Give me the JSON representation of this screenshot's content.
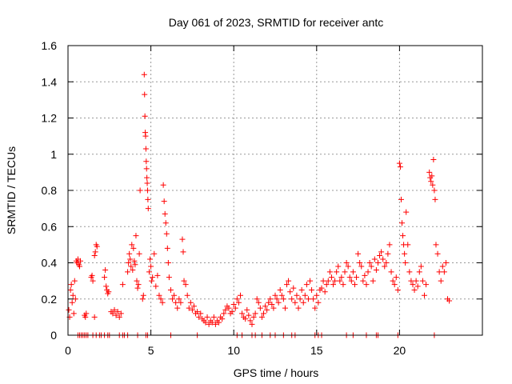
{
  "chart_data": {
    "type": "scatter",
    "title": "Day 061 of 2023, SRMTID for receiver antc",
    "xlabel": "GPS time / hours",
    "ylabel": "SRMTID / TECUs",
    "xlim": [
      0,
      25
    ],
    "ylim": [
      0,
      1.6
    ],
    "x_ticks": [
      0,
      5,
      10,
      15,
      20
    ],
    "x_tick_labels": [
      "0",
      "5",
      "10",
      "15",
      "20"
    ],
    "y_ticks": [
      0,
      0.2,
      0.4,
      0.6,
      0.8,
      1,
      1.2,
      1.4,
      1.6
    ],
    "y_tick_labels": [
      "0",
      "0.2",
      "0.4",
      "0.6",
      "0.8",
      "1",
      "1.2",
      "1.4",
      "1.6"
    ],
    "grid": true,
    "marker": "+",
    "colors": {
      "series": "#ff0000",
      "grid": "#999999",
      "axes": "#000000"
    },
    "series": [
      {
        "name": "SRMTID",
        "points": [
          [
            0.05,
            0.14
          ],
          [
            0.1,
            0.1
          ],
          [
            0.15,
            0.25
          ],
          [
            0.2,
            0.28
          ],
          [
            0.25,
            0.18
          ],
          [
            0.3,
            0.22
          ],
          [
            0.35,
            0.12
          ],
          [
            0.4,
            0.3
          ],
          [
            0.45,
            0.2
          ],
          [
            0.5,
            0.41
          ],
          [
            0.55,
            0.4
          ],
          [
            0.6,
            0.42
          ],
          [
            0.65,
            0.39
          ],
          [
            0.7,
            0.38
          ],
          [
            0.75,
            0.41
          ],
          [
            1.0,
            0.11
          ],
          [
            1.05,
            0.1
          ],
          [
            1.1,
            0.12
          ],
          [
            1.4,
            0.32
          ],
          [
            1.45,
            0.33
          ],
          [
            1.5,
            0.3
          ],
          [
            1.6,
            0.44
          ],
          [
            1.65,
            0.46
          ],
          [
            1.7,
            0.5
          ],
          [
            1.75,
            0.49
          ],
          [
            1.6,
            0.1
          ],
          [
            2.2,
            0.32
          ],
          [
            2.25,
            0.36
          ],
          [
            2.3,
            0.27
          ],
          [
            2.35,
            0.25
          ],
          [
            2.4,
            0.23
          ],
          [
            2.45,
            0.24
          ],
          [
            2.6,
            0.13
          ],
          [
            2.7,
            0.12
          ],
          [
            2.8,
            0.14
          ],
          [
            2.9,
            0.11
          ],
          [
            3.0,
            0.13
          ],
          [
            3.1,
            0.1
          ],
          [
            3.2,
            0.12
          ],
          [
            3.3,
            0.28
          ],
          [
            3.6,
            0.35
          ],
          [
            3.65,
            0.4
          ],
          [
            3.7,
            0.45
          ],
          [
            3.75,
            0.42
          ],
          [
            3.8,
            0.38
          ],
          [
            3.85,
            0.5
          ],
          [
            3.9,
            0.36
          ],
          [
            3.95,
            0.48
          ],
          [
            4.0,
            0.41
          ],
          [
            4.05,
            0.39
          ],
          [
            4.1,
            0.55
          ],
          [
            4.15,
            0.3
          ],
          [
            4.2,
            0.26
          ],
          [
            4.25,
            0.28
          ],
          [
            4.3,
            0.45
          ],
          [
            4.35,
            0.8
          ],
          [
            4.5,
            0.2
          ],
          [
            4.55,
            0.22
          ],
          [
            4.6,
            1.44
          ],
          [
            4.62,
            1.33
          ],
          [
            4.64,
            1.21
          ],
          [
            4.66,
            1.12
          ],
          [
            4.68,
            1.1
          ],
          [
            4.7,
            1.03
          ],
          [
            4.72,
            0.96
          ],
          [
            4.74,
            0.92
          ],
          [
            4.76,
            0.87
          ],
          [
            4.78,
            0.84
          ],
          [
            4.8,
            0.8
          ],
          [
            4.82,
            0.75
          ],
          [
            4.84,
            0.7
          ],
          [
            4.9,
            0.35
          ],
          [
            4.95,
            0.42
          ],
          [
            5.0,
            0.38
          ],
          [
            5.05,
            0.3
          ],
          [
            5.1,
            0.32
          ],
          [
            5.2,
            0.45
          ],
          [
            5.3,
            0.27
          ],
          [
            5.4,
            0.33
          ],
          [
            5.5,
            0.22
          ],
          [
            5.6,
            0.2
          ],
          [
            5.7,
            0.18
          ],
          [
            5.75,
            0.83
          ],
          [
            5.8,
            0.74
          ],
          [
            5.85,
            0.67
          ],
          [
            5.9,
            0.62
          ],
          [
            5.95,
            0.56
          ],
          [
            6.0,
            0.48
          ],
          [
            6.05,
            0.4
          ],
          [
            6.1,
            0.32
          ],
          [
            6.2,
            0.25
          ],
          [
            6.3,
            0.2
          ],
          [
            6.4,
            0.22
          ],
          [
            6.5,
            0.18
          ],
          [
            6.6,
            0.15
          ],
          [
            6.7,
            0.2
          ],
          [
            6.8,
            0.18
          ],
          [
            6.9,
            0.53
          ],
          [
            6.95,
            0.46
          ],
          [
            7.0,
            0.3
          ],
          [
            7.1,
            0.28
          ],
          [
            7.2,
            0.22
          ],
          [
            7.3,
            0.15
          ],
          [
            7.4,
            0.18
          ],
          [
            7.5,
            0.14
          ],
          [
            7.6,
            0.16
          ],
          [
            7.7,
            0.12
          ],
          [
            7.8,
            0.13
          ],
          [
            7.9,
            0.1
          ],
          [
            8.0,
            0.12
          ],
          [
            8.1,
            0.09
          ],
          [
            8.2,
            0.08
          ],
          [
            8.3,
            0.07
          ],
          [
            8.4,
            0.1
          ],
          [
            8.5,
            0.06
          ],
          [
            8.6,
            0.08
          ],
          [
            8.7,
            0.07
          ],
          [
            8.8,
            0.1
          ],
          [
            8.9,
            0.06
          ],
          [
            9.0,
            0.08
          ],
          [
            9.1,
            0.07
          ],
          [
            9.2,
            0.1
          ],
          [
            9.3,
            0.09
          ],
          [
            9.4,
            0.12
          ],
          [
            9.5,
            0.14
          ],
          [
            9.6,
            0.16
          ],
          [
            9.7,
            0.15
          ],
          [
            9.8,
            0.12
          ],
          [
            9.9,
            0.13
          ],
          [
            10.0,
            0.17
          ],
          [
            10.1,
            0.15
          ],
          [
            10.2,
            0.2
          ],
          [
            10.3,
            0.18
          ],
          [
            10.4,
            0.22
          ],
          [
            10.5,
            0.12
          ],
          [
            10.6,
            0.1
          ],
          [
            10.7,
            0.09
          ],
          [
            10.8,
            0.14
          ],
          [
            10.9,
            0.11
          ],
          [
            11.0,
            0.08
          ],
          [
            11.1,
            0.06
          ],
          [
            11.2,
            0.1
          ],
          [
            11.3,
            0.12
          ],
          [
            11.4,
            0.2
          ],
          [
            11.5,
            0.18
          ],
          [
            11.6,
            0.15
          ],
          [
            11.7,
            0.1
          ],
          [
            11.8,
            0.12
          ],
          [
            11.9,
            0.16
          ],
          [
            12.0,
            0.14
          ],
          [
            12.1,
            0.18
          ],
          [
            12.2,
            0.2
          ],
          [
            12.3,
            0.17
          ],
          [
            12.4,
            0.15
          ],
          [
            12.5,
            0.22
          ],
          [
            12.6,
            0.2
          ],
          [
            12.7,
            0.18
          ],
          [
            12.8,
            0.25
          ],
          [
            12.9,
            0.22
          ],
          [
            13.0,
            0.2
          ],
          [
            13.1,
            0.15
          ],
          [
            13.2,
            0.28
          ],
          [
            13.3,
            0.3
          ],
          [
            13.4,
            0.24
          ],
          [
            13.5,
            0.2
          ],
          [
            13.6,
            0.26
          ],
          [
            13.7,
            0.18
          ],
          [
            13.8,
            0.22
          ],
          [
            13.9,
            0.15
          ],
          [
            14.0,
            0.2
          ],
          [
            14.1,
            0.25
          ],
          [
            14.2,
            0.18
          ],
          [
            14.3,
            0.22
          ],
          [
            14.4,
            0.28
          ],
          [
            14.5,
            0.2
          ],
          [
            14.6,
            0.3
          ],
          [
            14.7,
            0.25
          ],
          [
            14.8,
            0.2
          ],
          [
            14.9,
            0.15
          ],
          [
            15.0,
            0.22
          ],
          [
            15.1,
            0.18
          ],
          [
            15.2,
            0.25
          ],
          [
            15.3,
            0.26
          ],
          [
            15.4,
            0.3
          ],
          [
            15.5,
            0.24
          ],
          [
            15.6,
            0.28
          ],
          [
            15.7,
            0.3
          ],
          [
            15.8,
            0.35
          ],
          [
            15.9,
            0.32
          ],
          [
            16.0,
            0.28
          ],
          [
            16.1,
            0.3
          ],
          [
            16.2,
            0.35
          ],
          [
            16.3,
            0.38
          ],
          [
            16.4,
            0.3
          ],
          [
            16.5,
            0.32
          ],
          [
            16.6,
            0.28
          ],
          [
            16.7,
            0.35
          ],
          [
            16.8,
            0.4
          ],
          [
            16.9,
            0.38
          ],
          [
            17.0,
            0.32
          ],
          [
            17.1,
            0.3
          ],
          [
            17.2,
            0.35
          ],
          [
            17.3,
            0.28
          ],
          [
            17.4,
            0.32
          ],
          [
            17.5,
            0.45
          ],
          [
            17.6,
            0.4
          ],
          [
            17.7,
            0.38
          ],
          [
            17.8,
            0.3
          ],
          [
            17.9,
            0.33
          ],
          [
            18.0,
            0.28
          ],
          [
            18.1,
            0.35
          ],
          [
            18.2,
            0.4
          ],
          [
            18.3,
            0.38
          ],
          [
            18.4,
            0.3
          ],
          [
            18.5,
            0.42
          ],
          [
            18.6,
            0.36
          ],
          [
            18.7,
            0.4
          ],
          [
            18.8,
            0.44
          ],
          [
            18.9,
            0.46
          ],
          [
            19.0,
            0.42
          ],
          [
            19.1,
            0.38
          ],
          [
            19.2,
            0.4
          ],
          [
            19.3,
            0.45
          ],
          [
            19.4,
            0.5
          ],
          [
            19.5,
            0.35
          ],
          [
            19.6,
            0.3
          ],
          [
            19.7,
            0.28
          ],
          [
            19.8,
            0.32
          ],
          [
            19.9,
            0.25
          ],
          [
            20.0,
            0.95
          ],
          [
            20.05,
            0.93
          ],
          [
            20.1,
            0.75
          ],
          [
            20.15,
            0.62
          ],
          [
            20.2,
            0.55
          ],
          [
            20.25,
            0.5
          ],
          [
            20.3,
            0.45
          ],
          [
            20.35,
            0.4
          ],
          [
            20.4,
            0.68
          ],
          [
            20.5,
            0.5
          ],
          [
            20.6,
            0.35
          ],
          [
            20.7,
            0.3
          ],
          [
            20.8,
            0.28
          ],
          [
            20.9,
            0.25
          ],
          [
            21.0,
            0.3
          ],
          [
            21.1,
            0.27
          ],
          [
            21.2,
            0.35
          ],
          [
            21.3,
            0.38
          ],
          [
            21.4,
            0.3
          ],
          [
            21.5,
            0.22
          ],
          [
            21.6,
            0.28
          ],
          [
            21.8,
            0.9
          ],
          [
            21.85,
            0.87
          ],
          [
            21.9,
            0.85
          ],
          [
            21.95,
            0.88
          ],
          [
            22.0,
            0.83
          ],
          [
            22.05,
            0.97
          ],
          [
            22.1,
            0.8
          ],
          [
            22.15,
            0.75
          ],
          [
            22.2,
            0.5
          ],
          [
            22.3,
            0.45
          ],
          [
            22.4,
            0.35
          ],
          [
            22.5,
            0.3
          ],
          [
            22.6,
            0.38
          ],
          [
            22.7,
            0.35
          ],
          [
            22.8,
            0.4
          ],
          [
            22.9,
            0.2
          ],
          [
            23.0,
            0.19
          ],
          [
            0.6,
            0.0
          ],
          [
            0.7,
            0.0
          ],
          [
            0.8,
            0.0
          ],
          [
            0.9,
            0.0
          ],
          [
            1.0,
            0.0
          ],
          [
            1.1,
            0.0
          ],
          [
            1.2,
            0.0
          ],
          [
            1.5,
            0.0
          ],
          [
            1.7,
            0.0
          ],
          [
            1.9,
            0.0
          ],
          [
            2.0,
            0.0
          ],
          [
            2.2,
            0.0
          ],
          [
            2.4,
            0.0
          ],
          [
            2.5,
            0.0
          ],
          [
            3.1,
            0.0
          ],
          [
            3.3,
            0.0
          ],
          [
            3.4,
            0.0
          ],
          [
            3.6,
            0.0
          ],
          [
            4.2,
            0.0
          ],
          [
            4.7,
            0.0
          ],
          [
            4.8,
            0.0
          ],
          [
            6.2,
            0.0
          ],
          [
            7.8,
            0.0
          ],
          [
            10.2,
            0.0
          ],
          [
            10.5,
            0.0
          ],
          [
            11.1,
            0.0
          ],
          [
            11.3,
            0.0
          ],
          [
            11.7,
            0.0
          ],
          [
            12.2,
            0.0
          ],
          [
            12.5,
            0.0
          ],
          [
            13.0,
            0.0
          ],
          [
            13.5,
            0.0
          ],
          [
            13.7,
            0.0
          ],
          [
            14.9,
            0.0
          ],
          [
            15.1,
            0.0
          ],
          [
            15.3,
            0.0
          ],
          [
            16.8,
            0.0
          ],
          [
            17.2,
            0.0
          ],
          [
            18.0,
            0.0
          ],
          [
            18.6,
            0.0
          ],
          [
            18.7,
            0.0
          ],
          [
            19.9,
            0.0
          ],
          [
            22.1,
            0.0
          ]
        ]
      }
    ]
  }
}
